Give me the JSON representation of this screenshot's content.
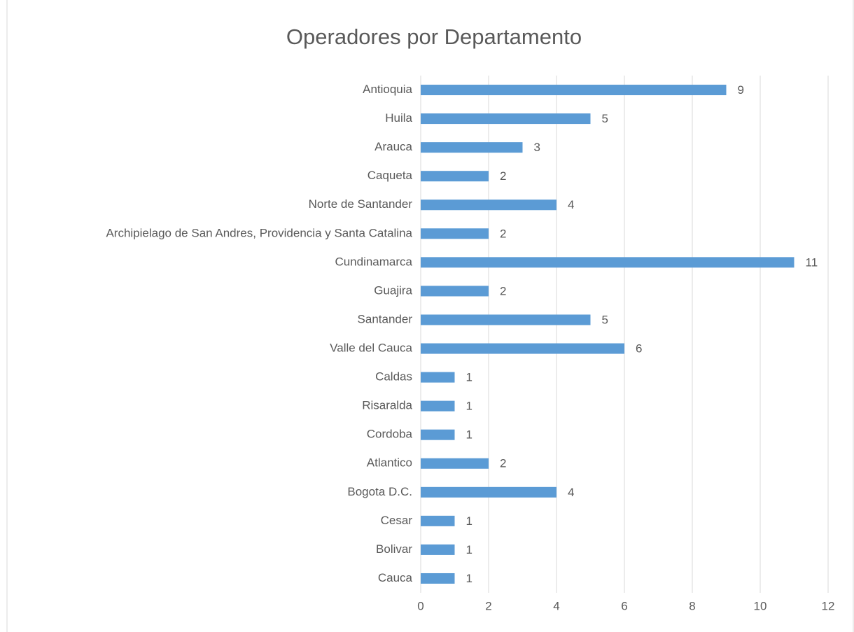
{
  "chart_data": {
    "type": "bar",
    "orientation": "horizontal",
    "title": "Operadores por Departamento",
    "categories": [
      "Antioquia",
      "Huila",
      "Arauca",
      "Caqueta",
      "Norte de Santander",
      "Archipielago de San Andres, Providencia y Santa Catalina",
      "Cundinamarca",
      "Guajira",
      "Santander",
      "Valle del Cauca",
      "Caldas",
      "Risaralda",
      "Cordoba",
      "Atlantico",
      "Bogota D.C.",
      "Cesar",
      "Bolivar",
      "Cauca"
    ],
    "values": [
      9,
      5,
      3,
      2,
      4,
      2,
      11,
      2,
      5,
      6,
      1,
      1,
      1,
      2,
      4,
      1,
      1,
      1
    ],
    "color": "#5b9bd5",
    "xlim": [
      0,
      12
    ],
    "xticks": [
      0,
      2,
      4,
      6,
      8,
      10,
      12
    ],
    "grid": true
  }
}
